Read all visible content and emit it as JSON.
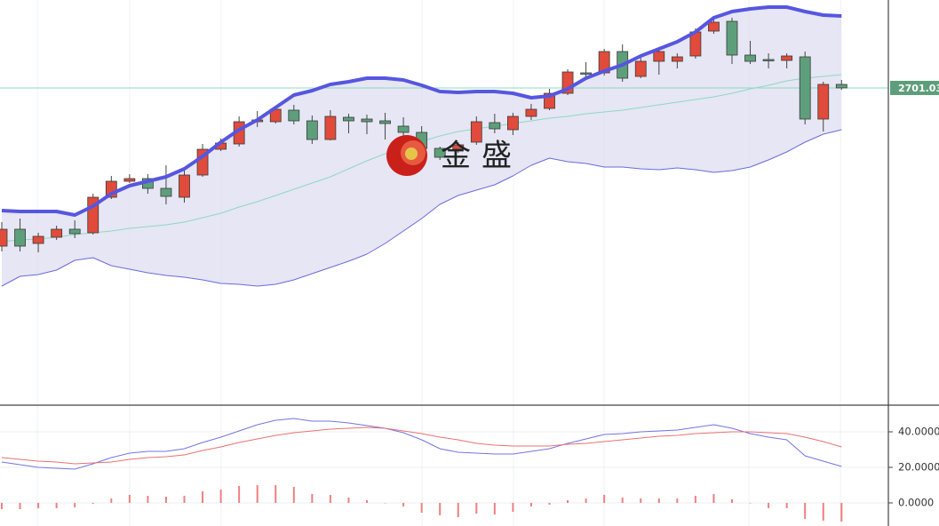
{
  "chart_data": [
    {
      "type": "candlestick",
      "annotation": "金盛",
      "categories": [
        null,
        null,
        null,
        null,
        null,
        null,
        null,
        null,
        null,
        null,
        null,
        null,
        null,
        null,
        null,
        null,
        null,
        null,
        null,
        null,
        null,
        null,
        null,
        null,
        null,
        null,
        null,
        null,
        null,
        null,
        null,
        null,
        null,
        null,
        null,
        null,
        null,
        null,
        null,
        null,
        null,
        null,
        null,
        null,
        null,
        null,
        null
      ],
      "open": [
        2523,
        2542,
        2526,
        2533,
        2542,
        2538,
        2578,
        2596,
        2599,
        2588,
        2578,
        2603,
        2632,
        2638,
        2663,
        2663,
        2676,
        2664,
        2643,
        2668,
        2666,
        2664,
        2658,
        2651,
        2633,
        2632,
        2640,
        2662,
        2654,
        2669,
        2678,
        2695,
        2718,
        2718,
        2742,
        2714,
        2731,
        2731,
        2737,
        2765,
        2776,
        2738,
        2733,
        2732,
        2736,
        2666,
        2705
      ],
      "high": [
        2550,
        2554,
        2538,
        2546,
        2552,
        2582,
        2602,
        2604,
        2604,
        2614,
        2608,
        2638,
        2644,
        2669,
        2675,
        2681,
        2682,
        2670,
        2676,
        2672,
        2671,
        2673,
        2668,
        2658,
        2635,
        2640,
        2669,
        2672,
        2673,
        2683,
        2700,
        2722,
        2730,
        2745,
        2750,
        2736,
        2744,
        2740,
        2768,
        2782,
        2780,
        2754,
        2740,
        2740,
        2742,
        2708,
        2710
      ],
      "low": [
        2517,
        2517,
        2516,
        2530,
        2532,
        2536,
        2576,
        2594,
        2582,
        2570,
        2572,
        2601,
        2630,
        2635,
        2657,
        2661,
        2660,
        2638,
        2642,
        2650,
        2649,
        2643,
        2645,
        2628,
        2620,
        2628,
        2637,
        2650,
        2648,
        2665,
        2676,
        2693,
        2712,
        2715,
        2708,
        2712,
        2716,
        2723,
        2734,
        2762,
        2728,
        2728,
        2723,
        2723,
        2660,
        2652,
        2699
      ],
      "close": [
        2542,
        2523,
        2534,
        2542,
        2537,
        2578,
        2596,
        2599,
        2588,
        2579,
        2603,
        2632,
        2639,
        2663,
        2665,
        2677,
        2664,
        2643,
        2669,
        2664,
        2663,
        2661,
        2651,
        2633,
        2623,
        2637,
        2663,
        2655,
        2669,
        2677,
        2695,
        2719,
        2717,
        2742,
        2712,
        2731,
        2742,
        2736,
        2764,
        2775,
        2738,
        2731,
        2732,
        2737,
        2666,
        2705,
        2701.03
      ],
      "up_color": "#e04b3b",
      "down_color": "#5e9f7b",
      "upper_band": {
        "color": "#5656e0",
        "values": [
          2563,
          2562,
          2562,
          2562,
          2558,
          2568,
          2582,
          2591,
          2596,
          2601,
          2610,
          2624,
          2640,
          2654,
          2665,
          2679,
          2693,
          2698,
          2705,
          2708,
          2712,
          2712,
          2710,
          2704,
          2697,
          2696,
          2697,
          2697,
          2695,
          2690,
          2692,
          2700,
          2712,
          2720,
          2727,
          2737,
          2745,
          2753,
          2764,
          2780,
          2787,
          2790,
          2792,
          2792,
          2787,
          2783,
          2782
        ]
      },
      "middle_band": {
        "color": "#8fd8c4",
        "values": [
          2528,
          2530,
          2531,
          2533,
          2536,
          2538,
          2540,
          2543,
          2545,
          2547,
          2550,
          2555,
          2560,
          2567,
          2573,
          2580,
          2587,
          2594,
          2601,
          2610,
          2619,
          2627,
          2634,
          2641,
          2647,
          2652,
          2655,
          2658,
          2661,
          2664,
          2667,
          2669,
          2672,
          2674,
          2676,
          2679,
          2682,
          2685,
          2688,
          2691,
          2695,
          2700,
          2704,
          2709,
          2712,
          2714,
          2716
        ]
      },
      "lower_band": {
        "color": "#6b6bdc",
        "values": [
          2478,
          2489,
          2491,
          2496,
          2507,
          2510,
          2501,
          2497,
          2493,
          2490,
          2488,
          2485,
          2481,
          2480,
          2478,
          2480,
          2485,
          2492,
          2499,
          2506,
          2514,
          2526,
          2540,
          2554,
          2570,
          2580,
          2586,
          2592,
          2602,
          2614,
          2622,
          2618,
          2616,
          2612,
          2612,
          2610,
          2609,
          2611,
          2609,
          2606,
          2608,
          2612,
          2620,
          2629,
          2640,
          2649,
          2654
        ]
      },
      "band_fill": "#dcdcef",
      "last_price": 2701.03,
      "ylim": [
        2345,
        2800
      ]
    },
    {
      "type": "macd",
      "series": [
        {
          "color": "#7474e2",
          "values": [
            23,
            21.5,
            20,
            19.5,
            19,
            22,
            25.5,
            28,
            29,
            29,
            30.5,
            34,
            37,
            40.5,
            44,
            46.5,
            47.5,
            46,
            46,
            45,
            43.5,
            42,
            39.5,
            35.5,
            30.5,
            28.5,
            28,
            27.5,
            27.5,
            29,
            30.5,
            33.5,
            36,
            38.5,
            39,
            40,
            40.5,
            41,
            42.5,
            44,
            42,
            39,
            37,
            35.5,
            26.5,
            23.5,
            20.5
          ]
        },
        {
          "color": "#ea7272",
          "values": [
            25.5,
            24.5,
            23.5,
            23,
            22,
            22.5,
            23,
            24.5,
            25.5,
            26,
            27,
            29.5,
            31.5,
            34,
            36,
            38,
            39.5,
            40.5,
            41.5,
            42,
            42.5,
            42,
            40.5,
            39,
            37,
            35.5,
            33.5,
            32.5,
            32,
            32,
            32,
            33,
            33.5,
            34.5,
            35.5,
            36.5,
            37.5,
            38,
            39,
            39.5,
            40,
            40,
            39.5,
            39,
            37,
            34.5,
            31.5
          ]
        }
      ],
      "histogram": {
        "color": "#ef7f7f",
        "values": [
          -3.5,
          -3.5,
          -3,
          -3,
          -2.5,
          -0.5,
          2.5,
          4.5,
          4,
          3.5,
          4,
          6.5,
          7.5,
          9.5,
          10,
          10,
          9,
          5,
          4.5,
          3,
          1.5,
          0,
          -2,
          -5.5,
          -7,
          -8,
          -6,
          -6.5,
          -5,
          -2,
          -1,
          1.5,
          2.5,
          4.5,
          3,
          2.5,
          2.5,
          2.5,
          4,
          5,
          2,
          0,
          -3,
          -3,
          -9,
          -10,
          -10.5
        ]
      },
      "ylim": [
        -13,
        54.5
      ],
      "yticks": [
        {
          "value": 40,
          "label": "40.0000"
        },
        {
          "value": 20,
          "label": "20.0000"
        },
        {
          "value": 0,
          "label": "0.0000"
        }
      ]
    }
  ]
}
